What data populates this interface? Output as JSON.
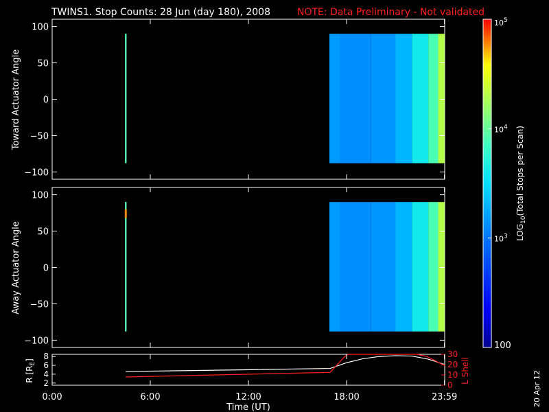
{
  "header": {
    "title": "TWINS1. Stop Counts: 28 Jun (day 180), 2008",
    "note": "NOTE: Data Preliminary - Not validated",
    "date_stamp": "20 Apr 12"
  },
  "colorbar": {
    "label": "LOG10(Total Stops per Scan)",
    "label_main": "LOG",
    "label_sub": "10",
    "label_rest": "(Total Stops per Scan)",
    "tick_100": "100",
    "tick_1e3": "10",
    "tick_1e3_exp": "3",
    "tick_1e4": "10",
    "tick_1e4_exp": "4",
    "tick_1e5": "10",
    "tick_1e5_exp": "5",
    "range": [
      100,
      100000
    ],
    "scale": "log"
  },
  "panels": {
    "toward": {
      "ylabel": "Toward Actuator Angle"
    },
    "away": {
      "ylabel": "Away Actuator Angle"
    },
    "ephem": {
      "ylabel_left": "R [R",
      "ylabel_left_sub": "E",
      "ylabel_left_end": "]",
      "ylabel_right": "L Shell"
    }
  },
  "axes": {
    "angle_ticks": [
      "100",
      "50",
      "0",
      "−50",
      "−100"
    ],
    "r_ticks": [
      "8",
      "6",
      "4",
      "2"
    ],
    "l_ticks": [
      "30",
      "20",
      "10",
      "0"
    ],
    "time_ticks": [
      "0:00",
      "6:00",
      "12:00",
      "18:00",
      "23:59"
    ],
    "xlabel": "Time (UT)"
  },
  "colors": {
    "background": "#000000",
    "axis": "#ffffff",
    "note": "#ff2020",
    "r_trace": "#ffffff",
    "l_trace": "#ff2020"
  },
  "chart_data": [
    {
      "type": "heatmap",
      "title": "TWINS1. Stop Counts: 28 Jun (day 180), 2008",
      "ylabel": "Toward Actuator Angle",
      "xlabel": "Time (UT)",
      "xlim": [
        0,
        24
      ],
      "ylim": [
        -110,
        110
      ],
      "angle_range": [
        -88,
        90
      ],
      "color_scale": "log10",
      "color_range": [
        100,
        100000
      ],
      "segments": [
        {
          "x_start": 4.45,
          "x_end": 4.55,
          "value": 8000
        },
        {
          "x_start": 16.95,
          "x_end": 17.6,
          "value": 1500
        },
        {
          "x_start": 17.6,
          "x_end": 19.5,
          "value": 1300
        },
        {
          "x_start": 19.5,
          "x_end": 21.0,
          "value": 1400
        },
        {
          "x_start": 21.0,
          "x_end": 22.0,
          "value": 2000
        },
        {
          "x_start": 22.0,
          "x_end": 23.0,
          "value": 4000
        },
        {
          "x_start": 23.0,
          "x_end": 23.6,
          "value": 8000
        },
        {
          "x_start": 23.6,
          "x_end": 23.99,
          "value": 20000
        }
      ]
    },
    {
      "type": "heatmap",
      "ylabel": "Away Actuator Angle",
      "xlabel": "Time (UT)",
      "xlim": [
        0,
        24
      ],
      "ylim": [
        -110,
        110
      ],
      "angle_range": [
        -88,
        90
      ],
      "color_scale": "log10",
      "color_range": [
        100,
        100000
      ],
      "segments": [
        {
          "x_start": 4.45,
          "x_end": 4.55,
          "value": 8000
        },
        {
          "x_start": 16.95,
          "x_end": 17.6,
          "value": 1500
        },
        {
          "x_start": 17.6,
          "x_end": 19.5,
          "value": 1300
        },
        {
          "x_start": 19.5,
          "x_end": 21.0,
          "value": 1400
        },
        {
          "x_start": 21.0,
          "x_end": 22.0,
          "value": 2000
        },
        {
          "x_start": 22.0,
          "x_end": 23.0,
          "value": 4000
        },
        {
          "x_start": 23.0,
          "x_end": 23.6,
          "value": 8000
        },
        {
          "x_start": 23.6,
          "x_end": 23.99,
          "value": 20000
        }
      ],
      "hotspot": {
        "x": 4.5,
        "y_start": 68,
        "y_end": 80,
        "value": 60000
      }
    },
    {
      "type": "line",
      "xlabel": "Time (UT)",
      "xlim": [
        0,
        24
      ],
      "ylim_left": [
        1.5,
        8.5
      ],
      "ylim_right": [
        0,
        30
      ],
      "series": [
        {
          "axis": "left",
          "color": "#ffffff",
          "x": [
            4.5,
            10,
            17,
            18,
            19,
            20,
            21,
            22,
            23,
            24
          ],
          "values": [
            4.6,
            4.9,
            5.3,
            6.6,
            7.5,
            8.0,
            8.2,
            8.1,
            7.4,
            6.2
          ]
        },
        {
          "axis": "right",
          "color": "#ff2020",
          "x": [
            4.5,
            10,
            17,
            17.9,
            18.1,
            22.3,
            22.9,
            24
          ],
          "values": [
            8,
            10,
            12.5,
            28,
            30,
            30,
            28,
            19
          ]
        }
      ]
    }
  ]
}
